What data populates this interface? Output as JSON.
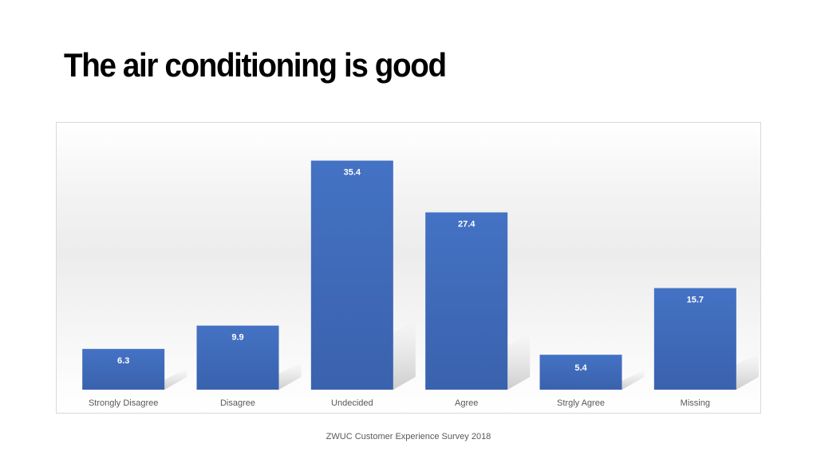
{
  "slide": {
    "title": "The air conditioning is good",
    "footer": "ZWUC Customer Experience Survey 2018"
  },
  "chart_data": {
    "type": "bar",
    "title": "",
    "xlabel": "",
    "ylabel": "",
    "categories": [
      "Strongly Disagree",
      "Disagree",
      "Undecided",
      "Agree",
      "Strgly Agree",
      "Missing"
    ],
    "values": [
      6.3,
      9.9,
      35.4,
      27.4,
      5.4,
      15.7
    ],
    "data_labels": [
      "6.3",
      "9.9",
      "35.4",
      "27.4",
      "5.4",
      "15.7"
    ],
    "ylim": [
      0,
      40
    ],
    "grid": false,
    "legend": "none",
    "colors": {
      "bar": "#4472c4",
      "bar_dark": "#3a62ad",
      "label_inside": "#ffffff",
      "category_label": "#595959"
    }
  }
}
